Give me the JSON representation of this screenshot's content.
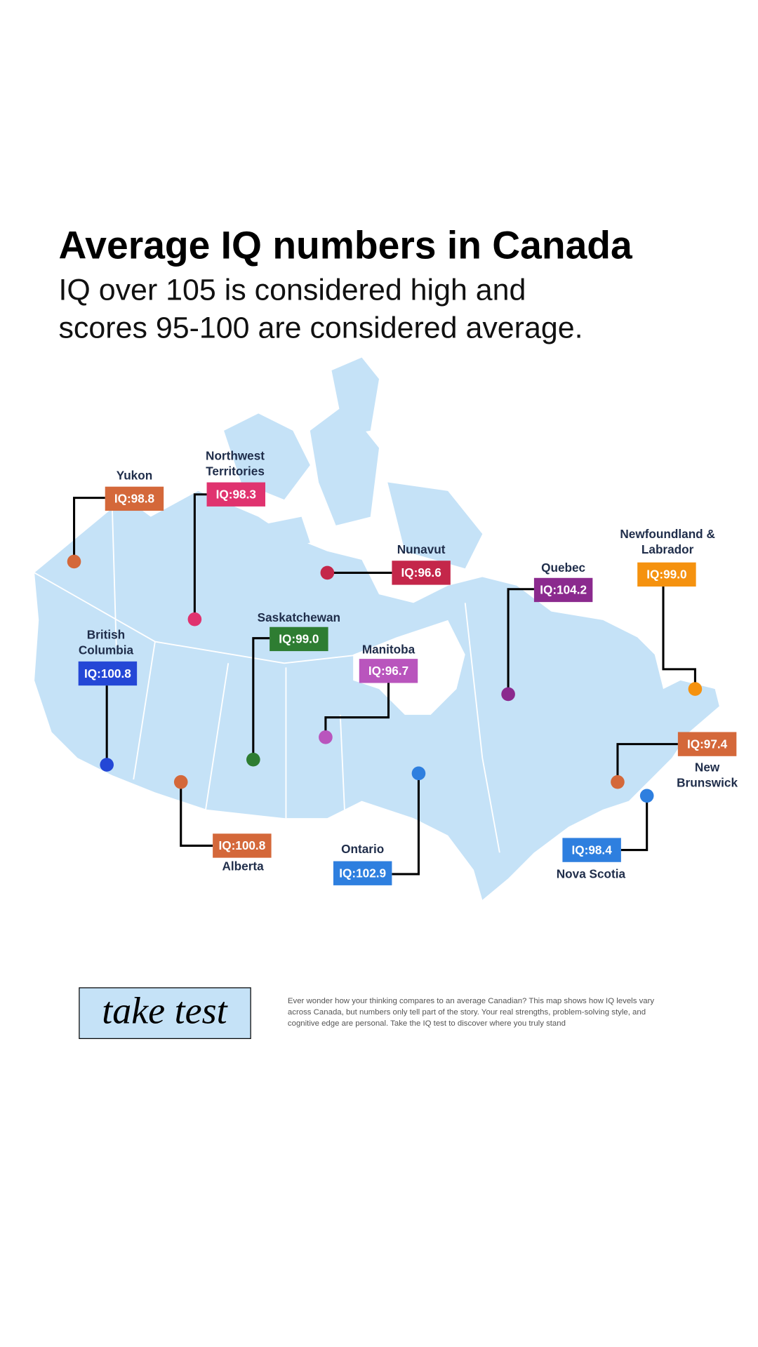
{
  "header": {
    "title": "Average IQ numbers in Canada",
    "subtitle": [
      "IQ over 105 is considered high and",
      "scores 95-100 are considered average."
    ]
  },
  "map": {
    "land_color": "#c5e2f7",
    "regions": [
      {
        "name": [
          "Yukon"
        ],
        "label": "IQ:98.8",
        "color": "#d4683a"
      },
      {
        "name": [
          "Northwest",
          "Territories"
        ],
        "label": "IQ:98.3",
        "color": "#e0336f"
      },
      {
        "name": [
          "Nunavut"
        ],
        "label": "IQ:96.6",
        "color": "#c4274a"
      },
      {
        "name": [
          "Quebec"
        ],
        "label": "IQ:104.2",
        "color": "#8b2a8e"
      },
      {
        "name": [
          "Newfoundland &",
          "Labrador"
        ],
        "label": "IQ:99.0",
        "color": "#f5920f"
      },
      {
        "name": [
          "Saskatchewan"
        ],
        "label": "IQ:99.0",
        "color": "#2e7d32"
      },
      {
        "name": [
          "British",
          "Columbia"
        ],
        "label": "IQ:100.8",
        "color": "#2447d6"
      },
      {
        "name": [
          "Manitoba"
        ],
        "label": "IQ:96.7",
        "color": "#b955bd"
      },
      {
        "name": [
          "Alberta"
        ],
        "label": "IQ:100.8",
        "color": "#d4683a"
      },
      {
        "name": [
          "Ontario"
        ],
        "label": "IQ:102.9",
        "color": "#2e7fdf"
      },
      {
        "name": [
          "New",
          "Brunswick"
        ],
        "label": "IQ:97.4",
        "color": "#d4683a"
      },
      {
        "name": [
          "Nova Scotia"
        ],
        "label": "IQ:98.4",
        "color": "#2e7fdf"
      }
    ]
  },
  "footer": {
    "button": "take test",
    "description": [
      "Ever wonder how your thinking compares to an average Canadian? This map shows how IQ levels vary",
      "across Canada, but numbers only tell part of the story. Your real strengths, problem-solving style, and",
      "cognitive edge are personal. Take the IQ test to discover where you truly stand"
    ]
  }
}
